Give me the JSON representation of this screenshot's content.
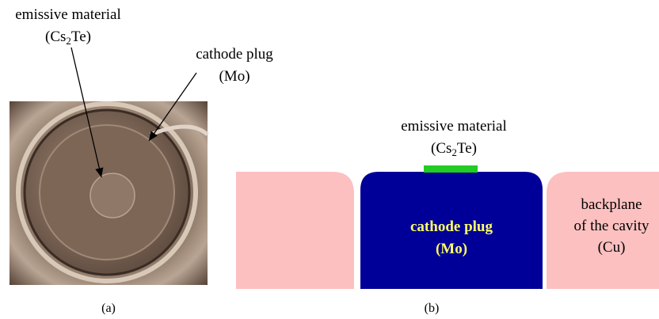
{
  "panel_a": {
    "emissive_label": {
      "line1": "emissive material",
      "prefix": "(Cs",
      "subscript": "2",
      "suffix": "Te)"
    },
    "plug_label": {
      "line1": "cathode plug",
      "line2": "(Mo)"
    },
    "caption": "(a)"
  },
  "panel_b": {
    "emissive_label": {
      "line1": "emissive material",
      "prefix": "(Cs",
      "subscript": "2",
      "suffix": "Te)"
    },
    "plug_label": {
      "line1": "cathode plug",
      "line2": "(Mo)"
    },
    "backplane_label": {
      "line1": "backplane",
      "line2": "of the cavity",
      "line3": "(Cu)"
    },
    "caption": "(b)"
  }
}
